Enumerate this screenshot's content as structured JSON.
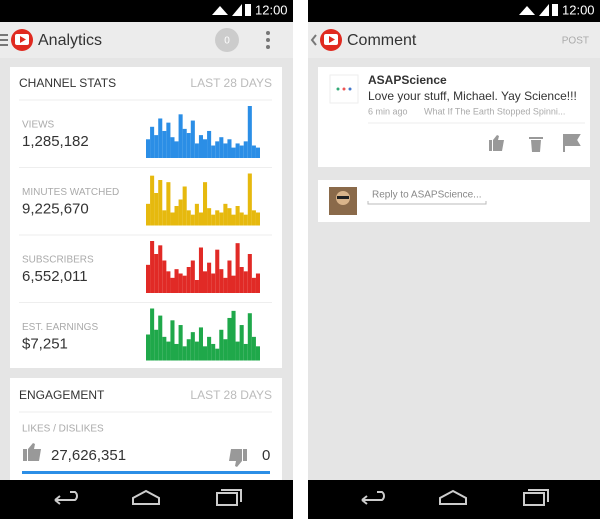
{
  "screens": [
    {
      "status_time": "12:00",
      "app_title": "Analytics",
      "badge": "0",
      "channel_stats": {
        "title": "CHANNEL STATS",
        "period": "LAST 28 DAYS",
        "rows": [
          {
            "label": "VIEWS",
            "value": "1,285,182",
            "color": "#2b8ee6",
            "sparkline": [
              18,
              30,
              22,
              38,
              26,
              34,
              20,
              16,
              42,
              28,
              24,
              36,
              14,
              22,
              18,
              26,
              12,
              16,
              20,
              14,
              18,
              10,
              14,
              12,
              16,
              50,
              12,
              10
            ]
          },
          {
            "label": "MINUTES WATCHED",
            "value": "9,225,670",
            "color": "#e6b90e",
            "sparkline": [
              20,
              46,
              30,
              42,
              14,
              40,
              12,
              18,
              24,
              36,
              14,
              10,
              20,
              12,
              40,
              16,
              10,
              14,
              12,
              20,
              16,
              10,
              18,
              12,
              10,
              48,
              14,
              12
            ]
          },
          {
            "label": "SUBSCRIBERS",
            "value": "6,552,011",
            "color": "#e12a26",
            "sparkline": [
              26,
              48,
              36,
              44,
              30,
              20,
              14,
              22,
              18,
              16,
              24,
              30,
              12,
              42,
              20,
              28,
              18,
              40,
              22,
              14,
              30,
              16,
              46,
              24,
              20,
              36,
              14,
              18
            ]
          },
          {
            "label": "EST. EARNINGS",
            "value": "$7,251",
            "color": "#1fa84a",
            "sparkline": [
              22,
              44,
              26,
              38,
              20,
              16,
              34,
              14,
              30,
              12,
              18,
              24,
              16,
              28,
              12,
              20,
              14,
              10,
              26,
              18,
              36,
              42,
              16,
              30,
              14,
              40,
              20,
              12
            ]
          }
        ]
      },
      "engagement": {
        "title": "ENGAGEMENT",
        "period": "LAST 28 DAYS",
        "label": "LIKES / DISLIKES",
        "likes": "27,626,351",
        "dislikes": "0"
      }
    },
    {
      "status_time": "12:00",
      "app_title": "Comment",
      "action": "POST",
      "comment": {
        "author": "ASAPScience",
        "text": "Love your stuff, Michael. Yay Science!!!",
        "time": "6 min ago",
        "video": "What If The Earth Stopped Spinni..."
      },
      "reply_placeholder": "Reply to ASAPScience..."
    }
  ]
}
